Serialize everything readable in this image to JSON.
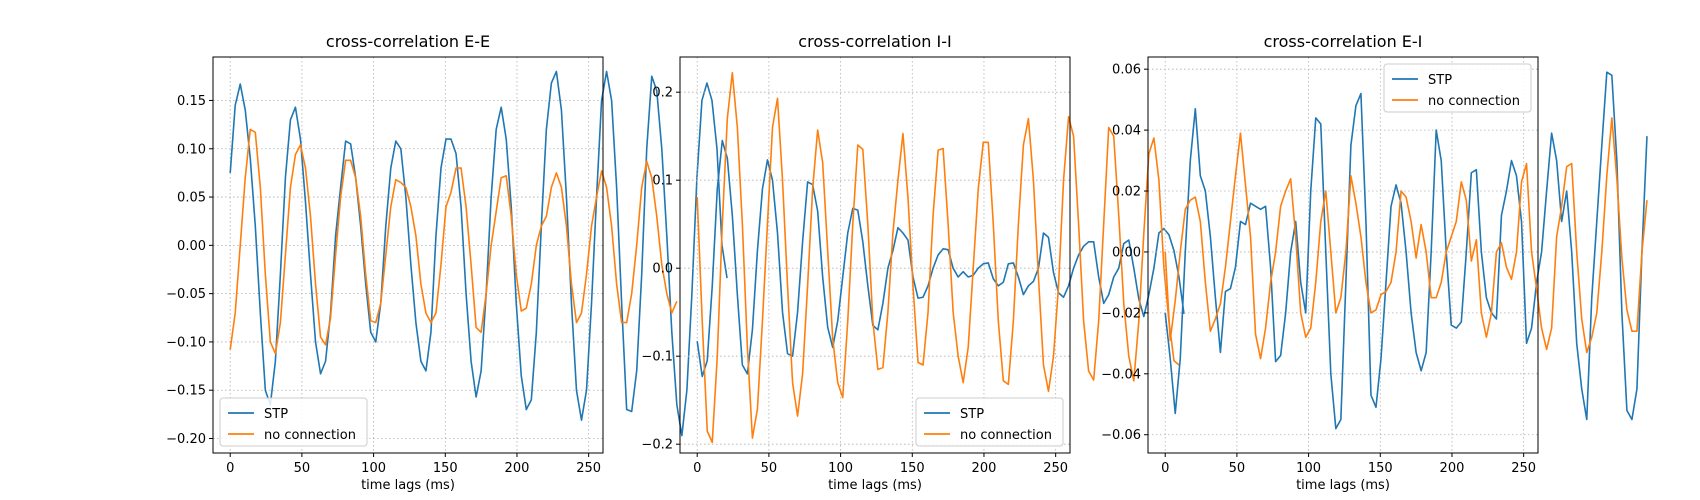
{
  "colors": {
    "stp": "#1f77b4",
    "no_connection": "#ff7f0e",
    "grid": "#b0b0b0"
  },
  "chart_data": [
    {
      "type": "line",
      "title": "cross-correlation E-E",
      "xlabel": "time lags  (ms)",
      "ylabel": "",
      "xlim": [
        -12,
        260
      ],
      "ylim": [
        -0.215,
        0.195
      ],
      "xticks": [
        0,
        50,
        100,
        150,
        200,
        250
      ],
      "yticks": [
        -0.2,
        -0.15,
        -0.1,
        -0.05,
        0.0,
        0.05,
        0.1,
        0.15
      ],
      "ytick_labels": [
        "−0.20",
        "−0.15",
        "−0.10",
        "−0.05",
        "0.00",
        "0.05",
        "0.10",
        "0.15"
      ],
      "grid": true,
      "legend": "lower-left",
      "x_step": 3.5,
      "series": [
        {
          "name": "STP",
          "color": "#1f77b4",
          "values": [
            0.075,
            0.145,
            0.167,
            0.14,
            0.09,
            0.02,
            -0.07,
            -0.15,
            -0.165,
            -0.12,
            -0.03,
            0.07,
            0.13,
            0.143,
            0.11,
            0.045,
            -0.03,
            -0.1,
            -0.133,
            -0.12,
            -0.07,
            0.01,
            0.06,
            0.108,
            0.105,
            0.07,
            0.02,
            -0.04,
            -0.09,
            -0.1,
            -0.06,
            0.02,
            0.08,
            0.108,
            0.1,
            0.05,
            -0.02,
            -0.08,
            -0.12,
            -0.13,
            -0.09,
            0.01,
            0.08,
            0.11,
            0.11,
            0.095,
            0.04,
            -0.05,
            -0.12,
            -0.157,
            -0.13,
            -0.05,
            0.05,
            0.12,
            0.143,
            0.11,
            0.04,
            -0.06,
            -0.135,
            -0.17,
            -0.16,
            -0.09,
            0.02,
            0.12,
            0.168,
            0.18,
            0.14,
            0.05,
            -0.06,
            -0.15,
            -0.181,
            -0.15,
            -0.06,
            0.05,
            0.15,
            0.18,
            0.15,
            0.06,
            -0.06,
            -0.17,
            -0.172,
            -0.13,
            -0.03,
            0.1,
            0.175,
            0.16,
            0.1,
            0.01,
            -0.09,
            -0.165,
            -0.197,
            -0.15,
            -0.05,
            0.07,
            0.15,
            0.168,
            0.15,
            0.1,
            0.0,
            -0.034
          ]
        },
        {
          "name": "no connection",
          "color": "#ff7f0e",
          "values": [
            -0.108,
            -0.07,
            0.0,
            0.07,
            0.12,
            0.117,
            0.06,
            -0.03,
            -0.1,
            -0.112,
            -0.08,
            -0.01,
            0.06,
            0.094,
            0.104,
            0.08,
            0.03,
            -0.04,
            -0.095,
            -0.103,
            -0.075,
            -0.01,
            0.05,
            0.088,
            0.088,
            0.07,
            0.03,
            -0.03,
            -0.078,
            -0.08,
            -0.06,
            -0.01,
            0.04,
            0.068,
            0.065,
            0.06,
            0.04,
            0.01,
            -0.04,
            -0.07,
            -0.08,
            -0.07,
            -0.02,
            0.04,
            0.055,
            0.08,
            0.08,
            0.04,
            -0.02,
            -0.085,
            -0.09,
            -0.05,
            0.0,
            0.035,
            0.07,
            0.072,
            0.03,
            -0.03,
            -0.068,
            -0.065,
            -0.04,
            0.0,
            0.02,
            0.03,
            0.06,
            0.075,
            0.06,
            0.02,
            -0.04,
            -0.08,
            -0.07,
            -0.03,
            0.02,
            0.05,
            0.077,
            0.06,
            0.02,
            -0.04,
            -0.08,
            -0.08,
            -0.05,
            0.0,
            0.06,
            0.087,
            0.07,
            0.03,
            -0.02,
            -0.05,
            -0.07,
            -0.058
          ]
        }
      ]
    },
    {
      "type": "line",
      "title": "cross-correlation I-I",
      "xlabel": "time lags  (ms)",
      "ylabel": "",
      "xlim": [
        -12,
        260
      ],
      "ylim": [
        -0.21,
        0.24
      ],
      "xticks": [
        0,
        50,
        100,
        150,
        200,
        250
      ],
      "yticks": [
        -0.2,
        -0.1,
        0.0,
        0.1,
        0.2
      ],
      "ytick_labels": [
        "−0.2",
        "−0.1",
        "0.0",
        "0.1",
        "0.2"
      ],
      "grid": true,
      "legend": "lower-right",
      "x_step": 3.5,
      "series": [
        {
          "name": "STP",
          "color": "#1f77b4",
          "values": [
            -0.083,
            -0.123,
            -0.105,
            -0.02,
            0.09,
            0.145,
            0.125,
            0.06,
            -0.03,
            -0.11,
            -0.12,
            -0.07,
            0.02,
            0.09,
            0.123,
            0.1,
            0.04,
            -0.05,
            -0.097,
            -0.1,
            -0.05,
            0.03,
            0.098,
            0.095,
            0.065,
            -0.01,
            -0.067,
            -0.09,
            -0.06,
            -0.01,
            0.04,
            0.068,
            0.066,
            0.03,
            -0.02,
            -0.065,
            -0.07,
            -0.04,
            0.0,
            0.02,
            0.046,
            0.04,
            0.032,
            -0.01,
            -0.034,
            -0.033,
            -0.02,
            0.0,
            0.015,
            0.022,
            0.021,
            0.0,
            -0.01,
            -0.004,
            -0.01,
            -0.008,
            0.0,
            0.005,
            0.006,
            -0.012,
            -0.02,
            -0.016,
            0.005,
            0.006,
            -0.01,
            -0.03,
            -0.02,
            -0.015,
            0.0,
            0.04,
            0.035,
            -0.005,
            -0.028,
            -0.033,
            -0.02,
            0.0,
            0.015,
            0.025,
            0.03,
            0.03,
            -0.01,
            -0.04,
            -0.03,
            -0.01,
            0.0,
            0.028,
            0.032,
            0.0,
            -0.035,
            -0.055,
            -0.03,
            0.0,
            0.04,
            0.045,
            0.038,
            0.02,
            -0.01,
            -0.052
          ]
        },
        {
          "name": "no connection",
          "color": "#ff7f0e",
          "values": [
            0.081,
            -0.06,
            -0.185,
            -0.198,
            -0.1,
            0.05,
            0.17,
            0.222,
            0.16,
            0.05,
            -0.09,
            -0.193,
            -0.16,
            -0.06,
            0.05,
            0.16,
            0.193,
            0.1,
            -0.02,
            -0.13,
            -0.168,
            -0.12,
            -0.02,
            0.09,
            0.157,
            0.12,
            0.02,
            -0.08,
            -0.13,
            -0.147,
            -0.06,
            0.05,
            0.14,
            0.135,
            0.05,
            -0.06,
            -0.115,
            -0.113,
            -0.05,
            0.04,
            0.1,
            0.153,
            0.08,
            -0.02,
            -0.107,
            -0.11,
            -0.05,
            0.06,
            0.134,
            0.136,
            0.05,
            -0.05,
            -0.1,
            -0.13,
            -0.09,
            0.0,
            0.09,
            0.143,
            0.143,
            0.05,
            -0.06,
            -0.128,
            -0.132,
            -0.06,
            0.05,
            0.14,
            0.17,
            0.1,
            -0.01,
            -0.11,
            -0.14,
            -0.1,
            -0.02,
            0.1,
            0.172,
            0.15,
            0.05,
            -0.06,
            -0.117,
            -0.127,
            -0.06,
            0.05,
            0.16,
            0.15,
            0.06,
            -0.04,
            -0.1,
            -0.128,
            -0.06,
            0.04,
            0.13,
            0.148,
            0.1,
            0.0,
            -0.06,
            -0.105,
            -0.11
          ]
        }
      ]
    },
    {
      "type": "line",
      "title": "cross-correlation E-I",
      "xlabel": "time lags  (ms)",
      "ylabel": "",
      "xlim": [
        -12,
        260
      ],
      "ylim": [
        -0.066,
        0.064
      ],
      "xticks": [
        0,
        50,
        100,
        150,
        200,
        250
      ],
      "yticks": [
        -0.06,
        -0.04,
        -0.02,
        0.0,
        0.02,
        0.04,
        0.06
      ],
      "ytick_labels": [
        "−0.06",
        "−0.04",
        "−0.02",
        "0.00",
        "0.02",
        "0.04",
        "0.06"
      ],
      "grid": true,
      "legend": "upper-right",
      "x_step": 3.5,
      "series": [
        {
          "name": "STP",
          "color": "#1f77b4",
          "values": [
            -0.02,
            -0.035,
            -0.053,
            -0.035,
            0.0,
            0.03,
            0.047,
            0.025,
            0.02,
            0.005,
            -0.015,
            -0.033,
            -0.013,
            -0.012,
            -0.005,
            0.01,
            0.009,
            0.016,
            0.015,
            0.014,
            0.015,
            -0.005,
            -0.036,
            -0.034,
            -0.02,
            0.0,
            0.01,
            -0.01,
            -0.02,
            0.02,
            0.044,
            0.042,
            0.0,
            -0.04,
            -0.058,
            -0.055,
            -0.01,
            0.035,
            0.048,
            0.052,
            0.01,
            -0.047,
            -0.051,
            -0.035,
            -0.01,
            0.015,
            0.022,
            0.016,
            0.0,
            -0.02,
            -0.033,
            -0.039,
            -0.033,
            0.0,
            0.04,
            0.03,
            0.0,
            -0.024,
            -0.025,
            -0.023,
            0.0,
            0.026,
            0.027,
            0.0,
            -0.015,
            -0.02,
            -0.022,
            0.012,
            0.02,
            0.03,
            0.025,
            0.01,
            -0.03,
            -0.025,
            -0.01,
            0.0,
            0.02,
            0.039,
            0.03,
            0.01,
            0.02,
            0.0,
            -0.03,
            -0.045,
            -0.055,
            -0.015,
            0.01,
            0.035,
            0.059,
            0.058,
            0.03,
            -0.02,
            -0.052,
            -0.055,
            -0.045,
            0.0,
            0.038
          ]
        },
        {
          "name": "no connection",
          "color": "#ff7f0e",
          "values": [
            0.0,
            -0.029,
            -0.016,
            0.0,
            0.014,
            0.017,
            0.018,
            0.01,
            -0.01,
            -0.026,
            -0.022,
            -0.017,
            -0.005,
            0.01,
            0.025,
            0.039,
            0.022,
            0.005,
            -0.027,
            -0.035,
            -0.025,
            -0.01,
            0.0,
            0.015,
            0.02,
            0.024,
            0.005,
            -0.02,
            -0.028,
            -0.025,
            -0.01,
            0.01,
            0.02,
            0.0,
            -0.02,
            -0.015,
            0.0,
            0.025,
            0.016,
            0.005,
            -0.01,
            -0.02,
            -0.019,
            -0.014,
            -0.013,
            -0.01,
            0.0,
            0.02,
            0.018,
            0.01,
            -0.002,
            0.009,
            0.0,
            -0.015,
            -0.015,
            -0.01,
            0.0,
            0.005,
            0.01,
            0.023,
            0.017,
            -0.003,
            0.004,
            -0.02,
            -0.028,
            -0.02,
            0.0,
            0.003,
            -0.005,
            -0.009,
            0.0,
            0.023,
            0.029,
            0.0,
            -0.012,
            -0.025,
            -0.032,
            -0.025,
            0.005,
            0.015,
            0.028,
            0.029,
            0.0,
            -0.022,
            -0.033,
            -0.028,
            -0.02,
            0.0,
            0.025,
            0.044,
            0.024,
            -0.002,
            -0.019,
            -0.026,
            -0.026,
            0.0,
            0.017
          ]
        }
      ]
    }
  ]
}
